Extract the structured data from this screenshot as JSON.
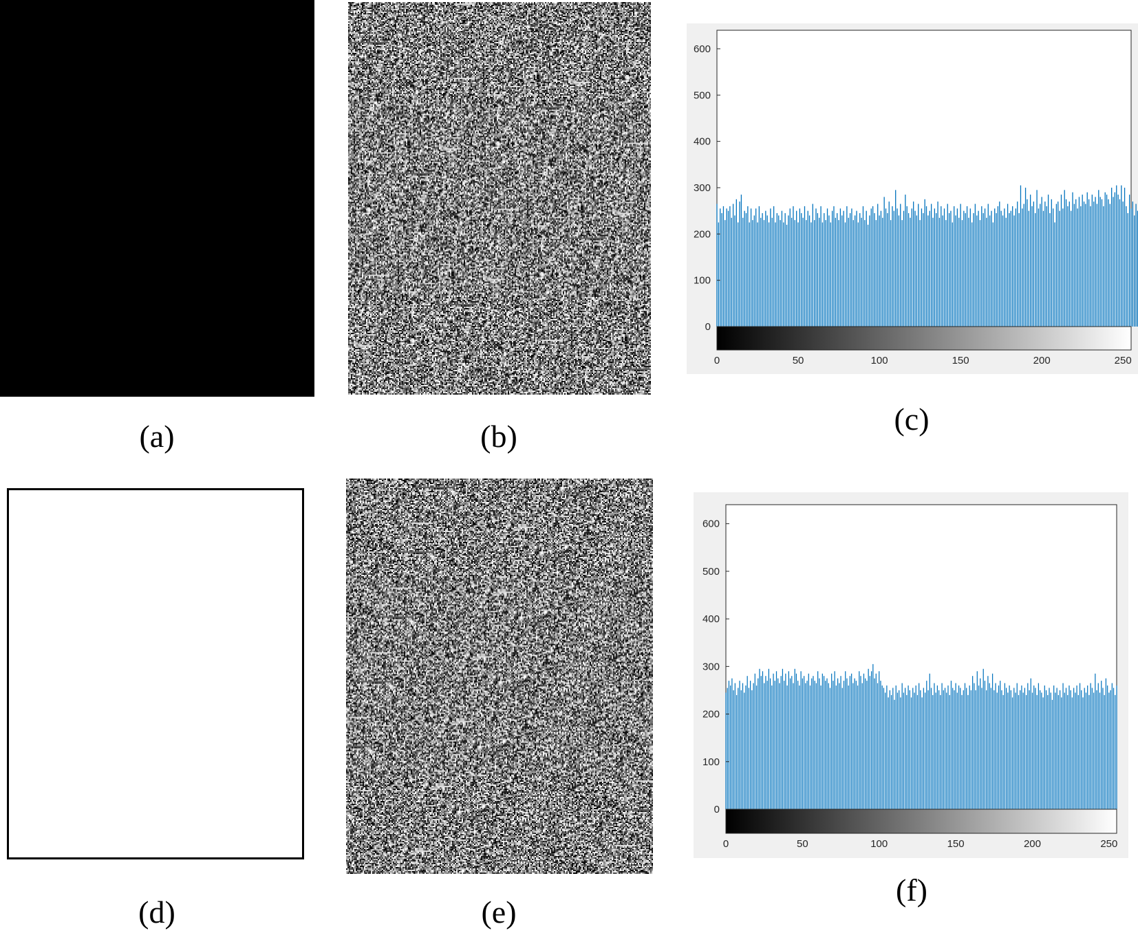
{
  "panels": {
    "a": {
      "caption": "(a)",
      "fill": "#000000"
    },
    "b": {
      "caption": "(b)"
    },
    "c": {
      "caption": "(c)"
    },
    "d": {
      "caption": "(d)",
      "fill": "#ffffff"
    },
    "e": {
      "caption": "(e)"
    },
    "f": {
      "caption": "(f)"
    }
  },
  "colors": {
    "bar": "#0072bd",
    "axes_bg": "#ffffff",
    "figure_bg": "#f0f0f0",
    "axis_line": "#262626"
  },
  "chart_data": [
    {
      "id": "c",
      "type": "bar",
      "title": "",
      "xlabel": "",
      "ylabel": "",
      "xlim": [
        0,
        255
      ],
      "ylim": [
        0,
        640
      ],
      "xticks": [
        0,
        50,
        100,
        150,
        200,
        250
      ],
      "yticks": [
        0,
        100,
        200,
        300,
        400,
        500,
        600
      ],
      "grid": false,
      "colorbar": "grayscale 0-255",
      "values": [
        265,
        225,
        255,
        245,
        260,
        230,
        255,
        250,
        260,
        235,
        265,
        240,
        275,
        225,
        270,
        285,
        235,
        250,
        245,
        260,
        225,
        255,
        230,
        240,
        255,
        225,
        260,
        235,
        245,
        230,
        250,
        240,
        225,
        255,
        235,
        260,
        225,
        245,
        240,
        230,
        250,
        225,
        245,
        220,
        240,
        255,
        235,
        260,
        230,
        250,
        225,
        255,
        245,
        235,
        260,
        230,
        250,
        240,
        225,
        265,
        230,
        255,
        245,
        235,
        260,
        225,
        245,
        230,
        255,
        240,
        225,
        250,
        260,
        235,
        245,
        230,
        255,
        240,
        250,
        225,
        260,
        235,
        245,
        255,
        230,
        240,
        250,
        225,
        245,
        235,
        260,
        230,
        250,
        220,
        240,
        255,
        260,
        245,
        230,
        265,
        240,
        250,
        235,
        280,
        255,
        245,
        270,
        230,
        260,
        250,
        295,
        255,
        240,
        265,
        230,
        250,
        285,
        260,
        245,
        235,
        255,
        270,
        250,
        240,
        265,
        230,
        255,
        245,
        275,
        260,
        240,
        250,
        265,
        235,
        255,
        245,
        270,
        235,
        260,
        240,
        255,
        230,
        265,
        245,
        250,
        225,
        260,
        240,
        255,
        235,
        265,
        230,
        250,
        245,
        260,
        235,
        255,
        225,
        245,
        265,
        240,
        250,
        230,
        260,
        245,
        255,
        235,
        265,
        240,
        250,
        225,
        255,
        245,
        260,
        270,
        250,
        240,
        255,
        235,
        265,
        245,
        250,
        260,
        240,
        255,
        270,
        245,
        305,
        255,
        265,
        300,
        275,
        250,
        285,
        260,
        270,
        245,
        295,
        255,
        265,
        280,
        250,
        270,
        260,
        285,
        245,
        275,
        255,
        225,
        265,
        270,
        250,
        285,
        255,
        295,
        275,
        260,
        270,
        250,
        290,
        265,
        275,
        255,
        280,
        260,
        285,
        270,
        265,
        290,
        275,
        260,
        285,
        270,
        280,
        265,
        295,
        280,
        275,
        260,
        290,
        285,
        275,
        265,
        300,
        280,
        290,
        305,
        285,
        275,
        305,
        270,
        300,
        260,
        245,
        285,
        255,
        270,
        240,
        265,
        250,
        275,
        260,
        230,
        255,
        245,
        265,
        235,
        290,
        255,
        240,
        275,
        265,
        250,
        275,
        245
      ],
      "bar_color": "#0072bd"
    },
    {
      "id": "f",
      "type": "bar",
      "title": "",
      "xlabel": "",
      "ylabel": "",
      "xlim": [
        0,
        255
      ],
      "ylim": [
        0,
        640
      ],
      "xticks": [
        0,
        50,
        100,
        150,
        200,
        250
      ],
      "yticks": [
        0,
        100,
        200,
        300,
        400,
        500,
        600
      ],
      "grid": false,
      "colorbar": "grayscale 0-255",
      "values": [
        245,
        255,
        270,
        260,
        275,
        250,
        265,
        240,
        255,
        270,
        250,
        265,
        245,
        260,
        280,
        255,
        270,
        250,
        265,
        285,
        260,
        275,
        295,
        280,
        290,
        265,
        280,
        270,
        295,
        275,
        260,
        285,
        270,
        290,
        275,
        265,
        280,
        295,
        270,
        285,
        260,
        290,
        275,
        280,
        265,
        295,
        285,
        270,
        260,
        290,
        275,
        280,
        265,
        270,
        285,
        260,
        275,
        280,
        270,
        265,
        290,
        275,
        260,
        285,
        280,
        270,
        275,
        265,
        255,
        285,
        270,
        290,
        260,
        275,
        265,
        280,
        255,
        270,
        290,
        275,
        260,
        280,
        285,
        265,
        275,
        270,
        260,
        290,
        280,
        265,
        285,
        275,
        270,
        295,
        280,
        290,
        305,
        275,
        285,
        265,
        290,
        270,
        260,
        255,
        245,
        260,
        235,
        250,
        240,
        255,
        230,
        260,
        245,
        250,
        235,
        265,
        245,
        255,
        240,
        260,
        250,
        235,
        255,
        245,
        260,
        240,
        265,
        250,
        235,
        255,
        245,
        270,
        250,
        285,
        255,
        240,
        265,
        245,
        260,
        250,
        240,
        265,
        250,
        255,
        245,
        260,
        240,
        270,
        255,
        250,
        265,
        245,
        260,
        255,
        240,
        250,
        265,
        255,
        240,
        260,
        250,
        280,
        265,
        250,
        290,
        260,
        275,
        255,
        295,
        270,
        250,
        280,
        265,
        255,
        285,
        250,
        265,
        245,
        260,
        270,
        250,
        240,
        265,
        255,
        245,
        260,
        250,
        235,
        255,
        245,
        265,
        240,
        250,
        260,
        245,
        255,
        240,
        265,
        250,
        275,
        245,
        260,
        255,
        240,
        265,
        250,
        245,
        235,
        260,
        250,
        240,
        255,
        245,
        230,
        260,
        245,
        255,
        240,
        250,
        235,
        265,
        245,
        255,
        240,
        260,
        250,
        235,
        255,
        245,
        260,
        240,
        265,
        250,
        235,
        255,
        245,
        260,
        240,
        265,
        255,
        245,
        285,
        250,
        265,
        245,
        270,
        255,
        240,
        275,
        260,
        245,
        250,
        265,
        255,
        240,
        260
      ]
    }
  ]
}
